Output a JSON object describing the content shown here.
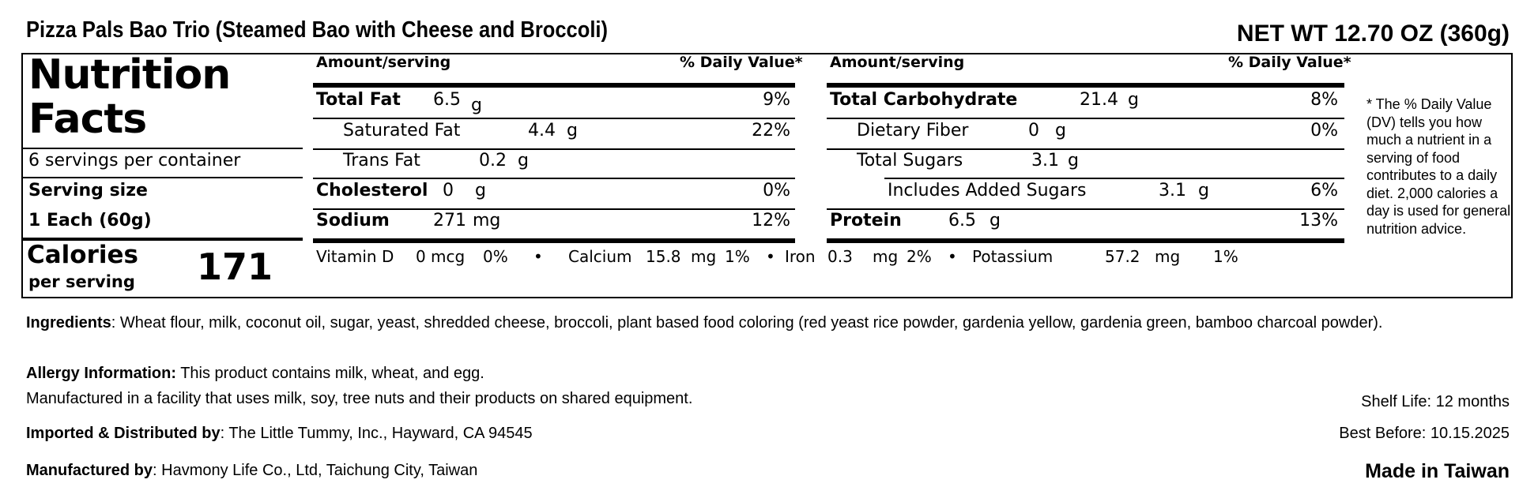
{
  "header": {
    "product_name": "Pizza Pals Bao Trio (Steamed Bao with Cheese and Broccoli)",
    "net_weight": "NET WT 12.70 OZ (360g)"
  },
  "nutrition": {
    "heading_line1": "Nutrition",
    "heading_line2": "Facts",
    "servings_per_container": "6 servings per container",
    "serving_size_label": "Serving size",
    "serving_size_value": "1 Each (60g)",
    "calories_label": "Calories",
    "calories_sub": "per serving",
    "calories_value": "171",
    "column_left": {
      "amount_header": "Amount/serving",
      "dv_header": "% Daily Value*"
    },
    "column_right": {
      "amount_header": "Amount/serving",
      "dv_header": "% Daily Value*"
    },
    "left_rows": [
      {
        "name": "Total Fat",
        "value": "6.5",
        "unit": "g",
        "dv": "9%"
      },
      {
        "name": "Saturated Fat",
        "value": "4.4",
        "unit": "g",
        "dv": "22%"
      },
      {
        "name": "Trans Fat",
        "value": "0.2",
        "unit": "g",
        "dv": ""
      },
      {
        "name": "Cholesterol",
        "value": "0",
        "unit": "g",
        "dv": "0%"
      },
      {
        "name": "Sodium",
        "value": "271",
        "unit": "mg",
        "dv": "12%"
      }
    ],
    "right_rows": [
      {
        "name": "Total Carbohydrate",
        "value": "21.4",
        "unit": "g",
        "dv": "8%"
      },
      {
        "name": "Dietary Fiber",
        "value": "0",
        "unit": "g",
        "dv": "0%"
      },
      {
        "name": "Total Sugars",
        "value": "3.1",
        "unit": "g",
        "dv": ""
      },
      {
        "name": "Includes Added Sugars",
        "value": "3.1",
        "unit": "g",
        "dv": "6%"
      },
      {
        "name": "Protein",
        "value": "6.5",
        "unit": "g",
        "dv": "13%"
      }
    ],
    "vitamins": [
      {
        "name": "Vitamin D",
        "value": "0",
        "unit": "mcg",
        "dv": "0%"
      },
      {
        "name": "Calcium",
        "value": "15.8",
        "unit": "mg",
        "dv": "1%"
      },
      {
        "name": "Iron",
        "value": "0.3",
        "unit": "mg",
        "dv": "2%"
      },
      {
        "name": "Potassium",
        "value": "57.2",
        "unit": "mg",
        "dv": "1%"
      }
    ],
    "bullet": "•",
    "footnote": "* The % Daily Value (DV) tells you how much a nutrient in a serving of food contributes to a daily diet. 2,000 calories a day is used for general nutrition advice."
  },
  "info": {
    "ingredients_label": "Ingredients",
    "ingredients_text": ": Wheat flour, milk, coconut oil, sugar, yeast, shredded cheese, broccoli, plant based food coloring (red yeast rice powder, gardenia yellow, gardenia green, bamboo charcoal powder).",
    "allergy_label": "Allergy Information:",
    "allergy_text": " This product contains milk, wheat, and egg.",
    "facility_text": "Manufactured in a facility that uses milk, soy, tree nuts and their products on shared equipment.",
    "importer_label": "Imported & Distributed by",
    "importer_text": ": The Little Tummy, Inc., Hayward, CA 94545",
    "manufacturer_label": "Manufactured by",
    "manufacturer_text": ": Havmony Life Co., Ltd, Taichung City, Taiwan",
    "shelf_life": "Shelf Life: 12 months",
    "best_before": "Best Before: 10.15.2025",
    "origin": "Made in Taiwan"
  }
}
